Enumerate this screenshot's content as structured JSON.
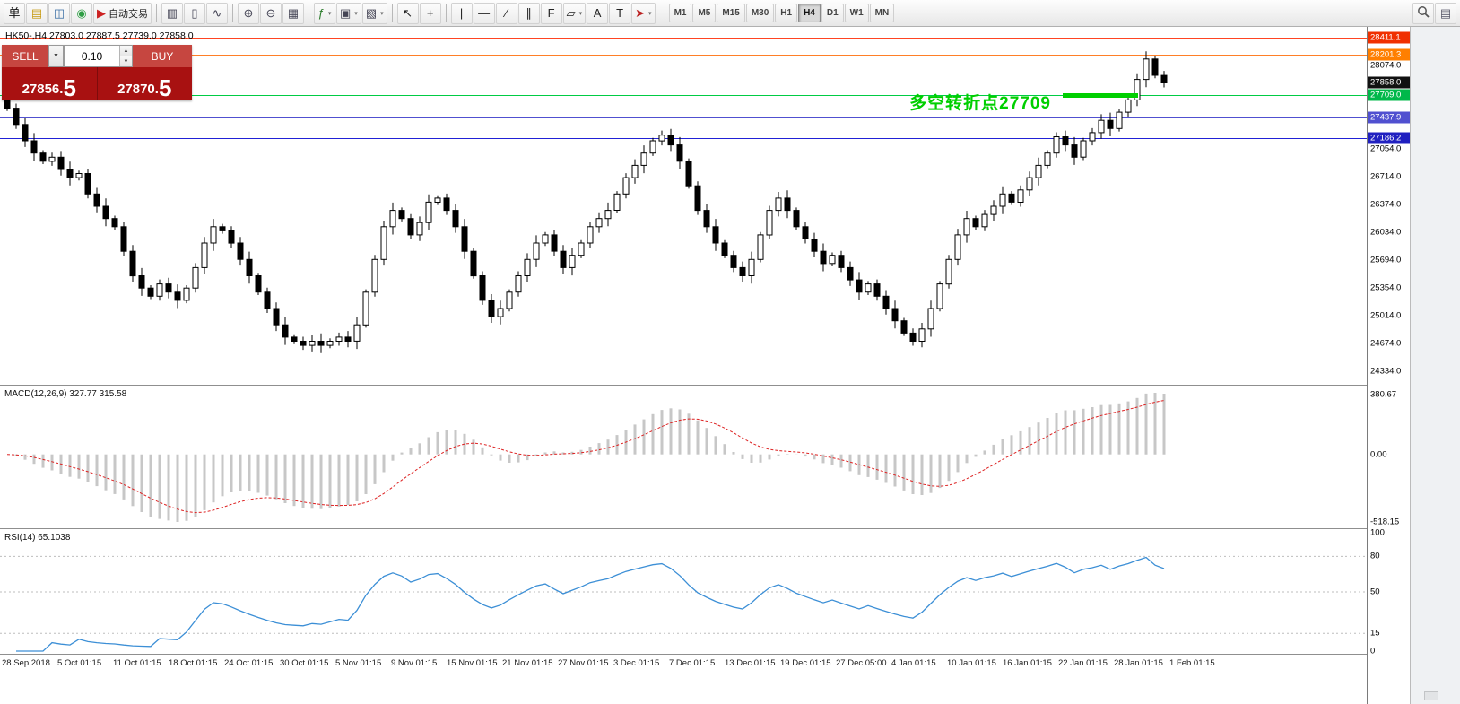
{
  "toolbar": {
    "left_items": [
      {
        "kind": "button",
        "base": "new-order",
        "glyph": "单",
        "color": "#111"
      },
      {
        "kind": "button",
        "base": "profiles",
        "glyph": "▤",
        "color": "#c79a10"
      },
      {
        "kind": "button",
        "base": "chart-window",
        "glyph": "◫",
        "color": "#3a6ea5"
      },
      {
        "kind": "button",
        "base": "info",
        "glyph": "◉",
        "color": "#2e9e44"
      },
      {
        "kind": "button",
        "base": "autotrade",
        "glyph": "▶",
        "color": "#cc2222",
        "label": "自动交易"
      },
      {
        "kind": "sep"
      },
      {
        "kind": "button",
        "base": "bar-chart",
        "glyph": "▥",
        "color": "#445"
      },
      {
        "kind": "button",
        "base": "candlestick-chart",
        "glyph": "▯",
        "color": "#445"
      },
      {
        "kind": "button",
        "base": "line-chart",
        "glyph": "∿",
        "color": "#445"
      },
      {
        "kind": "sep"
      },
      {
        "kind": "button",
        "base": "zoom-in",
        "glyph": "⊕",
        "color": "#445"
      },
      {
        "kind": "button",
        "base": "zoom-out",
        "glyph": "⊖",
        "color": "#445"
      },
      {
        "kind": "button",
        "base": "grid",
        "glyph": "▦",
        "color": "#445"
      },
      {
        "kind": "sep"
      },
      {
        "kind": "button",
        "base": "indicators",
        "glyph": "ƒ",
        "color": "#2d7d2d",
        "dropdown": true
      },
      {
        "kind": "button",
        "base": "periods",
        "glyph": "▣",
        "color": "#445",
        "dropdown": true
      },
      {
        "kind": "button",
        "base": "templates",
        "glyph": "▧",
        "color": "#445",
        "dropdown": true
      },
      {
        "kind": "sep"
      },
      {
        "kind": "button",
        "base": "cursor",
        "glyph": "↖",
        "color": "#222"
      },
      {
        "kind": "button",
        "base": "crosshair",
        "glyph": "+",
        "color": "#222"
      },
      {
        "kind": "sep"
      },
      {
        "kind": "button",
        "base": "vertical-line",
        "glyph": "|",
        "color": "#222"
      },
      {
        "kind": "button",
        "base": "horizontal-line",
        "glyph": "—",
        "color": "#222"
      },
      {
        "kind": "button",
        "base": "trendline",
        "glyph": "∕",
        "color": "#222"
      },
      {
        "kind": "button",
        "base": "channel",
        "glyph": "∥",
        "color": "#222"
      },
      {
        "kind": "button",
        "base": "fibonacci",
        "glyph": "F",
        "color": "#222"
      },
      {
        "kind": "button",
        "base": "shapes",
        "glyph": "▱",
        "color": "#222",
        "dropdown": true
      },
      {
        "kind": "button",
        "base": "text",
        "glyph": "A",
        "color": "#222"
      },
      {
        "kind": "button",
        "base": "label",
        "glyph": "T",
        "color": "#222"
      },
      {
        "kind": "button",
        "base": "arrows",
        "glyph": "➤",
        "color": "#b22",
        "dropdown": true
      }
    ],
    "timeframes": [
      "M1",
      "M5",
      "M15",
      "M30",
      "H1",
      "H4",
      "D1",
      "W1",
      "MN"
    ],
    "active_timeframe": "H4",
    "right_items": [
      {
        "kind": "button",
        "base": "search",
        "icon": "search"
      },
      {
        "kind": "button",
        "base": "panels",
        "glyph": "▤",
        "color": "#556"
      }
    ]
  },
  "chart": {
    "title": "HK50-,H4 27803.0 27887.5 27739.0 27858.0",
    "current_bar": {
      "open": "27803.0",
      "high": "27887.5",
      "low": "27739.0",
      "close": "27858.0"
    },
    "annotation": {
      "text": "多空转折点27709",
      "color": "#00cf00",
      "level": 27709
    },
    "levels": [
      {
        "value": 28411.1,
        "label": "28411.1",
        "color": "#ff4422",
        "tag": "#f03000",
        "line": true
      },
      {
        "value": 28201.3,
        "label": "28201.3",
        "color": "#ff7f27",
        "tag": "#ff7f00",
        "line": true
      },
      {
        "value": 27858.0,
        "label": "27858.0",
        "color": "#000000",
        "tag": "#111111",
        "line": false
      },
      {
        "value": 27709.0,
        "label": "27709.0",
        "color": "#00cc44",
        "tag": "#00b84a",
        "line": true
      },
      {
        "value": 27437.9,
        "label": "27437.9",
        "color": "#5050d0",
        "tag": "#5050d0",
        "line": true
      },
      {
        "value": 27186.2,
        "label": "27186.2",
        "color": "#2121d6",
        "tag": "#2020c0",
        "line": true
      }
    ],
    "axis_values": [
      {
        "v": 28074,
        "t": "28074.0"
      },
      {
        "v": 27054,
        "t": "27054.0"
      },
      {
        "v": 26714,
        "t": "26714.0"
      },
      {
        "v": 26374,
        "t": "26374.0"
      },
      {
        "v": 26034,
        "t": "26034.0"
      },
      {
        "v": 25694,
        "t": "25694.0"
      },
      {
        "v": 25354,
        "t": "25354.0"
      },
      {
        "v": 25014,
        "t": "25014.0"
      },
      {
        "v": 24674,
        "t": "24674.0"
      },
      {
        "v": 24334,
        "t": "24334.0"
      }
    ]
  },
  "trade_panel": {
    "sell_label": "SELL",
    "buy_label": "BUY",
    "volume": "0.10",
    "dropdown_glyph": "▼",
    "spin_up": "▲",
    "spin_down": "▼",
    "sell_price": "27856.5",
    "buy_price": "27870.5",
    "sell_price_main": "27856.",
    "sell_price_big": "5",
    "buy_price_main": "27870.",
    "buy_price_big": "5"
  },
  "indicators": {
    "macd": {
      "label": "MACD(12,26,9) 327.77 315.58",
      "params": {
        "fast": 12,
        "slow": 26,
        "signal": 9
      },
      "axis_top": "380.67",
      "axis_zero": "0.00",
      "axis_bottom": "-518.15"
    },
    "rsi": {
      "label": "RSI(14) 65.1038",
      "period": 14,
      "current": "65.1038",
      "axis": [
        {
          "v": 100,
          "t": "100"
        },
        {
          "v": 80,
          "t": "80"
        },
        {
          "v": 50,
          "t": "50"
        },
        {
          "v": 15,
          "t": "15"
        },
        {
          "v": 0,
          "t": "0"
        }
      ],
      "levels": [
        80,
        50,
        15
      ]
    }
  },
  "time_axis": [
    "28 Sep 2018",
    "5 Oct 01:15",
    "11 Oct 01:15",
    "18 Oct 01:15",
    "24 Oct 01:15",
    "30 Oct 01:15",
    "5 Nov 01:15",
    "9 Nov 01:15",
    "15 Nov 01:15",
    "21 Nov 01:15",
    "27 Nov 01:15",
    "3 Dec 01:15",
    "7 Dec 01:15",
    "13 Dec 01:15",
    "19 Dec 01:15",
    "27 Dec 05:00",
    "4 Jan 01:15",
    "10 Jan 01:15",
    "16 Jan 01:15",
    "22 Jan 01:15",
    "28 Jan 01:15",
    "1 Feb 01:15"
  ],
  "chart_data": {
    "type": "candlestick",
    "symbol": "HK50-",
    "timeframe": "H4",
    "ylim": [
      24157,
      28543
    ],
    "first_open": 27650,
    "closes": [
      27550,
      27350,
      27150,
      27000,
      26900,
      26950,
      26800,
      26700,
      26750,
      26500,
      26350,
      26200,
      26100,
      25800,
      25500,
      25350,
      25250,
      25400,
      25300,
      25200,
      25350,
      25600,
      25900,
      26100,
      26050,
      25900,
      25700,
      25500,
      25300,
      25100,
      24900,
      24750,
      24700,
      24650,
      24700,
      24650,
      24700,
      24750,
      24700,
      24900,
      25300,
      25700,
      26100,
      26300,
      26200,
      26000,
      26150,
      26400,
      26450,
      26300,
      26100,
      25800,
      25500,
      25200,
      25000,
      25100,
      25300,
      25500,
      25700,
      25900,
      26000,
      25800,
      25600,
      25750,
      25900,
      26100,
      26200,
      26300,
      26500,
      26700,
      26850,
      27000,
      27150,
      27220,
      27100,
      26900,
      26600,
      26300,
      26100,
      25900,
      25750,
      25600,
      25500,
      25700,
      26000,
      26300,
      26450,
      26300,
      26100,
      25950,
      25800,
      25650,
      25750,
      25600,
      25450,
      25300,
      25400,
      25250,
      25100,
      24950,
      24800,
      24700,
      24850,
      25100,
      25400,
      25700,
      26000,
      26200,
      26100,
      26250,
      26350,
      26500,
      26400,
      26550,
      26700,
      26850,
      27000,
      27200,
      27100,
      26950,
      27150,
      27250,
      27400,
      27300,
      27500,
      27650,
      27900,
      28150,
      27950,
      27858
    ]
  }
}
